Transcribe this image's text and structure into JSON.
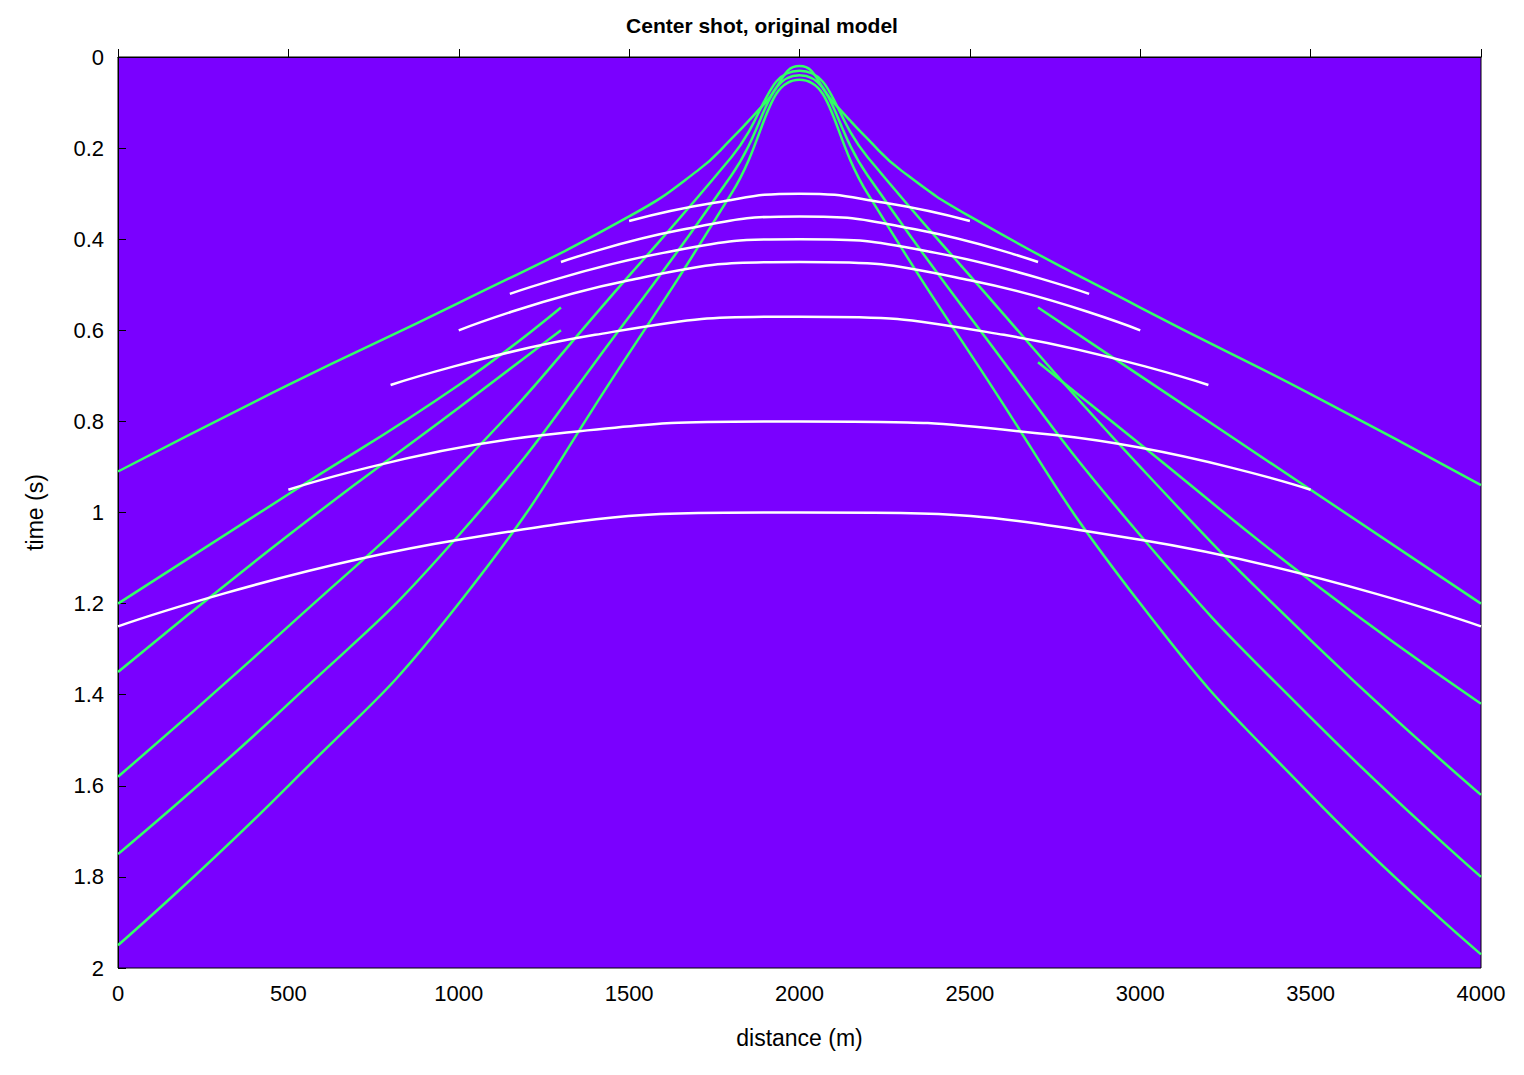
{
  "chart_data": {
    "type": "line",
    "title": "Center shot, original model",
    "x_label": "distance (m)",
    "y_label": "time (s)",
    "xlim": [
      0,
      4000
    ],
    "xticks": [
      0,
      500,
      1000,
      1500,
      2000,
      2500,
      3000,
      3500,
      4000
    ],
    "ylim": [
      0,
      2
    ],
    "yticks": [
      0,
      0.2,
      0.4,
      0.6,
      0.8,
      1,
      1.2,
      1.4,
      1.6,
      1.8,
      2
    ],
    "grid": false,
    "series": [
      {
        "color": "#33ff66",
        "x": [
          0,
          500,
          1000,
          1500,
          1700,
          1800,
          1900,
          2000,
          2100,
          2200,
          2300,
          2500,
          3000,
          3500,
          4000
        ],
        "values": [
          0.91,
          0.72,
          0.54,
          0.35,
          0.25,
          0.18,
          0.1,
          0.02,
          0.1,
          0.18,
          0.25,
          0.35,
          0.55,
          0.74,
          0.94
        ]
      },
      {
        "color": "#33ff66",
        "x": [
          0,
          500,
          1000,
          1300,
          2000,
          2700,
          3000,
          3500,
          4000
        ],
        "values": [
          1.2,
          0.96,
          0.72,
          0.55,
          null,
          0.55,
          0.7,
          0.95,
          1.2
        ]
      },
      {
        "color": "#33ff66",
        "x": [
          0,
          500,
          1000,
          1300,
          2000,
          2700,
          3000,
          3500,
          4000
        ],
        "values": [
          1.35,
          1.05,
          0.77,
          0.6,
          null,
          0.67,
          0.85,
          1.15,
          1.42
        ]
      },
      {
        "color": "#33ff66",
        "x": [
          0,
          500,
          1000,
          1500,
          1800,
          2000,
          2200,
          2500,
          3000,
          3500,
          4000
        ],
        "values": [
          1.58,
          1.25,
          0.9,
          0.48,
          0.22,
          0.03,
          0.22,
          0.48,
          0.9,
          1.28,
          1.62
        ]
      },
      {
        "color": "#33ff66",
        "x": [
          0,
          500,
          1000,
          1500,
          1800,
          2000,
          2200,
          2500,
          3000,
          3500,
          4000
        ],
        "values": [
          1.75,
          1.42,
          1.05,
          0.57,
          0.26,
          0.04,
          0.26,
          0.57,
          1.05,
          1.45,
          1.8
        ]
      },
      {
        "color": "#33ff66",
        "x": [
          0,
          500,
          1000,
          1500,
          1800,
          2000,
          2200,
          2500,
          3000,
          3500,
          4000
        ],
        "values": [
          1.95,
          1.6,
          1.2,
          0.65,
          0.3,
          0.05,
          0.3,
          0.65,
          1.2,
          1.62,
          1.97
        ]
      },
      {
        "color": "#ffffff",
        "x": [
          1500,
          1750,
          2000,
          2250,
          2500
        ],
        "values": [
          0.36,
          0.32,
          0.3,
          0.32,
          0.36
        ]
      },
      {
        "color": "#ffffff",
        "x": [
          1300,
          1650,
          2000,
          2350,
          2700
        ],
        "values": [
          0.45,
          0.38,
          0.35,
          0.38,
          0.45
        ]
      },
      {
        "color": "#ffffff",
        "x": [
          1150,
          1600,
          2000,
          2400,
          2850
        ],
        "values": [
          0.52,
          0.43,
          0.4,
          0.43,
          0.52
        ]
      },
      {
        "color": "#ffffff",
        "x": [
          1000,
          1500,
          2000,
          2500,
          3000
        ],
        "values": [
          0.6,
          0.49,
          0.45,
          0.49,
          0.6
        ]
      },
      {
        "color": "#ffffff",
        "x": [
          800,
          1400,
          2000,
          2600,
          3200
        ],
        "values": [
          0.72,
          0.61,
          0.57,
          0.61,
          0.72
        ]
      },
      {
        "color": "#ffffff",
        "x": [
          500,
          1250,
          2000,
          2750,
          3500
        ],
        "values": [
          0.95,
          0.83,
          0.8,
          0.83,
          0.95
        ]
      },
      {
        "color": "#ffffff",
        "x": [
          0,
          1000,
          2000,
          3000,
          4000
        ],
        "values": [
          1.25,
          1.06,
          1.0,
          1.06,
          1.25
        ]
      }
    ]
  }
}
